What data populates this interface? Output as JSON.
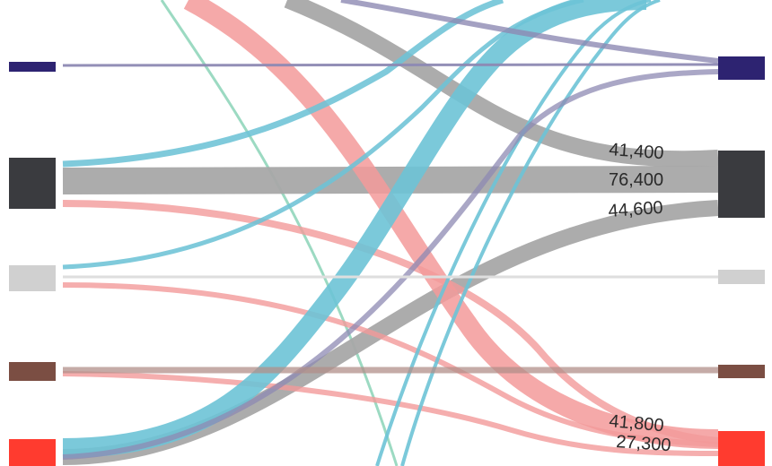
{
  "colors": {
    "navy": "#2d2371",
    "charcoal": "#3a3b3f",
    "light_gray": "#d0d0d0",
    "brown": "#7b4e43",
    "red": "#ff3b2f",
    "flow_gray": "#a8a8a8",
    "flow_blue": "#6dc3d6",
    "flow_pink": "#f39a9a",
    "flow_purple": "#8d89b3",
    "flow_green": "#97d8bf"
  },
  "labels": [
    {
      "id": "label-41400",
      "text": "41,400"
    },
    {
      "id": "label-76400",
      "text": "76,400"
    },
    {
      "id": "label-44600",
      "text": "44,600"
    },
    {
      "id": "label-41800",
      "text": "41,800"
    },
    {
      "id": "label-27300",
      "text": "27,300"
    }
  ]
}
